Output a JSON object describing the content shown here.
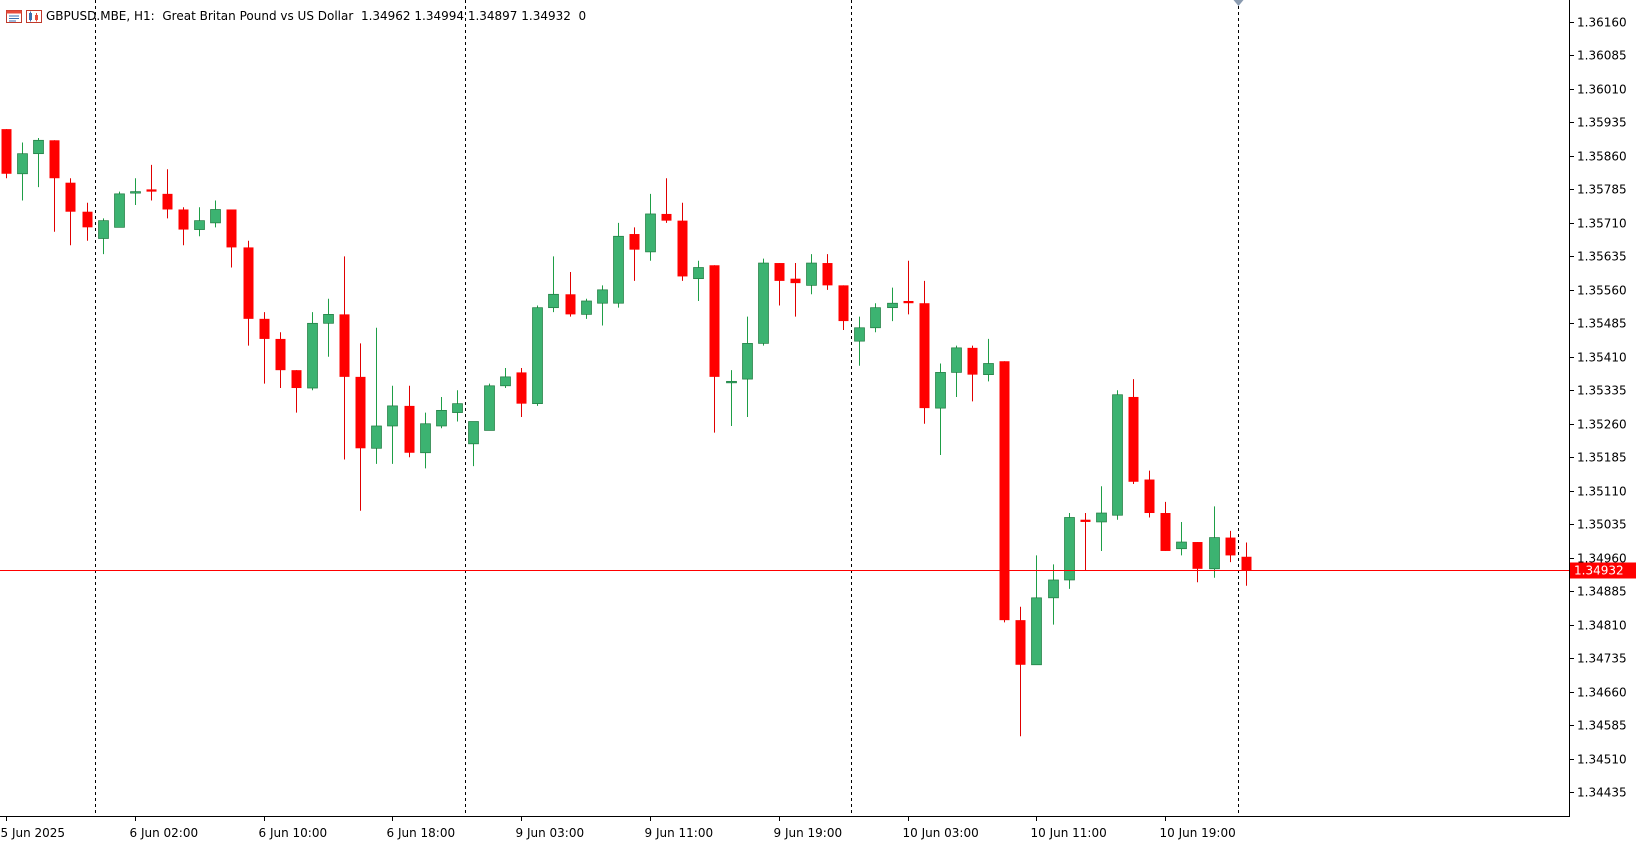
{
  "header": {
    "symbol": "GBPUSD.MBE, H1:",
    "description": "Great Britan Pound vs US Dollar",
    "ohlc": "1.34962 1.34994 1.34897 1.34932",
    "volume": "0",
    "icons": [
      "window-menu-icon",
      "chart-type-icon"
    ]
  },
  "colors": {
    "bull": "#3cb371",
    "bear": "#ff0000",
    "wick_bull": "#1e9e46",
    "wick_bear": "#e00000",
    "current_price_line": "#ff0000",
    "axis": "#000000",
    "separator": "#000000"
  },
  "chart_data": {
    "type": "candlestick",
    "symbol": "GBPUSD.MBE",
    "timeframe": "H1",
    "current_price": 1.34932,
    "current_price_label": "1.34932",
    "ylim": [
      1.3437,
      1.362
    ],
    "y_ticks": [
      "1.36160",
      "1.36085",
      "1.36010",
      "1.35935",
      "1.35860",
      "1.35785",
      "1.35710",
      "1.35635",
      "1.35560",
      "1.35485",
      "1.35410",
      "1.35335",
      "1.35260",
      "1.35185",
      "1.35110",
      "1.35035",
      "1.34960",
      "1.34885",
      "1.34810",
      "1.34735",
      "1.34660",
      "1.34585",
      "1.34510",
      "1.34435"
    ],
    "x_tick_labels": [
      {
        "label": "5 Jun 2025",
        "bar": 0
      },
      {
        "label": "6 Jun 02:00",
        "bar": 8
      },
      {
        "label": "6 Jun 10:00",
        "bar": 16
      },
      {
        "label": "6 Jun 18:00",
        "bar": 24
      },
      {
        "label": "9 Jun 03:00",
        "bar": 32
      },
      {
        "label": "9 Jun 11:00",
        "bar": 40
      },
      {
        "label": "9 Jun 19:00",
        "bar": 48
      },
      {
        "label": "10 Jun 03:00",
        "bar": 56
      },
      {
        "label": "10 Jun 11:00",
        "bar": 64
      },
      {
        "label": "10 Jun 19:00",
        "bar": 72
      }
    ],
    "day_separator_bars": [
      5.5,
      28.5,
      52.5,
      76.5
    ],
    "candles": [
      {
        "o": 1.3592,
        "h": 1.3592,
        "l": 1.3581,
        "c": 1.3582
      },
      {
        "o": 1.3582,
        "h": 1.3589,
        "l": 1.3576,
        "c": 1.35865
      },
      {
        "o": 1.35865,
        "h": 1.359,
        "l": 1.3579,
        "c": 1.35895
      },
      {
        "o": 1.35895,
        "h": 1.35895,
        "l": 1.3569,
        "c": 1.3581
      },
      {
        "o": 1.358,
        "h": 1.3581,
        "l": 1.3566,
        "c": 1.35735
      },
      {
        "o": 1.35735,
        "h": 1.35755,
        "l": 1.3567,
        "c": 1.357
      },
      {
        "o": 1.35675,
        "h": 1.3572,
        "l": 1.3564,
        "c": 1.35715
      },
      {
        "o": 1.357,
        "h": 1.3578,
        "l": 1.357,
        "c": 1.35775
      },
      {
        "o": 1.3578,
        "h": 1.3581,
        "l": 1.3575,
        "c": 1.3578
      },
      {
        "o": 1.35785,
        "h": 1.3584,
        "l": 1.3576,
        "c": 1.3578
      },
      {
        "o": 1.35775,
        "h": 1.3583,
        "l": 1.3572,
        "c": 1.3574
      },
      {
        "o": 1.3574,
        "h": 1.35745,
        "l": 1.3566,
        "c": 1.35695
      },
      {
        "o": 1.35695,
        "h": 1.35745,
        "l": 1.3568,
        "c": 1.35715
      },
      {
        "o": 1.3571,
        "h": 1.3576,
        "l": 1.357,
        "c": 1.3574
      },
      {
        "o": 1.3574,
        "h": 1.3574,
        "l": 1.3561,
        "c": 1.35655
      },
      {
        "o": 1.35655,
        "h": 1.3567,
        "l": 1.35435,
        "c": 1.35495
      },
      {
        "o": 1.35495,
        "h": 1.3551,
        "l": 1.3535,
        "c": 1.3545
      },
      {
        "o": 1.3545,
        "h": 1.35465,
        "l": 1.3534,
        "c": 1.3538
      },
      {
        "o": 1.3538,
        "h": 1.3538,
        "l": 1.35285,
        "c": 1.3534
      },
      {
        "o": 1.3534,
        "h": 1.3551,
        "l": 1.35335,
        "c": 1.35485
      },
      {
        "o": 1.35485,
        "h": 1.3554,
        "l": 1.3541,
        "c": 1.35505
      },
      {
        "o": 1.35505,
        "h": 1.35635,
        "l": 1.3518,
        "c": 1.35365
      },
      {
        "o": 1.35365,
        "h": 1.3544,
        "l": 1.35065,
        "c": 1.35205
      },
      {
        "o": 1.35205,
        "h": 1.35475,
        "l": 1.3517,
        "c": 1.35255
      },
      {
        "o": 1.35255,
        "h": 1.35345,
        "l": 1.3517,
        "c": 1.353
      },
      {
        "o": 1.353,
        "h": 1.35345,
        "l": 1.35185,
        "c": 1.35195
      },
      {
        "o": 1.35195,
        "h": 1.35285,
        "l": 1.3516,
        "c": 1.3526
      },
      {
        "o": 1.35255,
        "h": 1.3532,
        "l": 1.3525,
        "c": 1.3529
      },
      {
        "o": 1.35285,
        "h": 1.35335,
        "l": 1.35265,
        "c": 1.35305
      },
      {
        "o": 1.35215,
        "h": 1.35265,
        "l": 1.35165,
        "c": 1.35265
      },
      {
        "o": 1.35245,
        "h": 1.3535,
        "l": 1.35245,
        "c": 1.35345
      },
      {
        "o": 1.35345,
        "h": 1.35385,
        "l": 1.3534,
        "c": 1.35365
      },
      {
        "o": 1.35375,
        "h": 1.35385,
        "l": 1.35275,
        "c": 1.35305
      },
      {
        "o": 1.35305,
        "h": 1.35525,
        "l": 1.353,
        "c": 1.3552
      },
      {
        "o": 1.3552,
        "h": 1.35635,
        "l": 1.3551,
        "c": 1.3555
      },
      {
        "o": 1.3555,
        "h": 1.356,
        "l": 1.355,
        "c": 1.35505
      },
      {
        "o": 1.35505,
        "h": 1.3554,
        "l": 1.35495,
        "c": 1.35535
      },
      {
        "o": 1.3553,
        "h": 1.3557,
        "l": 1.3548,
        "c": 1.3556
      },
      {
        "o": 1.3553,
        "h": 1.3571,
        "l": 1.3552,
        "c": 1.3568
      },
      {
        "o": 1.35685,
        "h": 1.357,
        "l": 1.3558,
        "c": 1.3565
      },
      {
        "o": 1.35645,
        "h": 1.35775,
        "l": 1.35625,
        "c": 1.3573
      },
      {
        "o": 1.3573,
        "h": 1.3581,
        "l": 1.3571,
        "c": 1.35715
      },
      {
        "o": 1.35715,
        "h": 1.35755,
        "l": 1.3558,
        "c": 1.3559
      },
      {
        "o": 1.35585,
        "h": 1.35625,
        "l": 1.35535,
        "c": 1.3561
      },
      {
        "o": 1.35615,
        "h": 1.35615,
        "l": 1.3524,
        "c": 1.35365
      },
      {
        "o": 1.35355,
        "h": 1.3538,
        "l": 1.35255,
        "c": 1.35355
      },
      {
        "o": 1.3536,
        "h": 1.355,
        "l": 1.35275,
        "c": 1.3544
      },
      {
        "o": 1.3544,
        "h": 1.3563,
        "l": 1.35435,
        "c": 1.3562
      },
      {
        "o": 1.3562,
        "h": 1.3562,
        "l": 1.35525,
        "c": 1.3558
      },
      {
        "o": 1.35585,
        "h": 1.3562,
        "l": 1.355,
        "c": 1.35575
      },
      {
        "o": 1.3557,
        "h": 1.3564,
        "l": 1.3555,
        "c": 1.3562
      },
      {
        "o": 1.3562,
        "h": 1.3564,
        "l": 1.3556,
        "c": 1.3557
      },
      {
        "o": 1.3557,
        "h": 1.3557,
        "l": 1.3547,
        "c": 1.3549
      },
      {
        "o": 1.35445,
        "h": 1.355,
        "l": 1.3539,
        "c": 1.35475
      },
      {
        "o": 1.35475,
        "h": 1.3553,
        "l": 1.35465,
        "c": 1.3552
      },
      {
        "o": 1.3552,
        "h": 1.35565,
        "l": 1.3549,
        "c": 1.3553
      },
      {
        "o": 1.35535,
        "h": 1.35625,
        "l": 1.35505,
        "c": 1.3553
      },
      {
        "o": 1.3553,
        "h": 1.3558,
        "l": 1.3526,
        "c": 1.35295
      },
      {
        "o": 1.35295,
        "h": 1.35395,
        "l": 1.3519,
        "c": 1.35375
      },
      {
        "o": 1.35375,
        "h": 1.35435,
        "l": 1.3532,
        "c": 1.3543
      },
      {
        "o": 1.3543,
        "h": 1.35435,
        "l": 1.3531,
        "c": 1.3537
      },
      {
        "o": 1.3537,
        "h": 1.3545,
        "l": 1.35355,
        "c": 1.35395
      },
      {
        "o": 1.354,
        "h": 1.354,
        "l": 1.34815,
        "c": 1.3482
      },
      {
        "o": 1.3482,
        "h": 1.3485,
        "l": 1.3456,
        "c": 1.3472
      },
      {
        "o": 1.3472,
        "h": 1.34965,
        "l": 1.3472,
        "c": 1.3487
      },
      {
        "o": 1.3487,
        "h": 1.34945,
        "l": 1.3481,
        "c": 1.3491
      },
      {
        "o": 1.3491,
        "h": 1.3506,
        "l": 1.3489,
        "c": 1.3505
      },
      {
        "o": 1.35045,
        "h": 1.3506,
        "l": 1.3493,
        "c": 1.3504
      },
      {
        "o": 1.3504,
        "h": 1.3512,
        "l": 1.34975,
        "c": 1.3506
      },
      {
        "o": 1.35055,
        "h": 1.35335,
        "l": 1.35045,
        "c": 1.35325
      },
      {
        "o": 1.3532,
        "h": 1.3536,
        "l": 1.35125,
        "c": 1.3513
      },
      {
        "o": 1.35135,
        "h": 1.35155,
        "l": 1.3505,
        "c": 1.3506
      },
      {
        "o": 1.3506,
        "h": 1.35085,
        "l": 1.34975,
        "c": 1.34975
      },
      {
        "o": 1.3498,
        "h": 1.3504,
        "l": 1.34965,
        "c": 1.34995
      },
      {
        "o": 1.34995,
        "h": 1.34995,
        "l": 1.34905,
        "c": 1.34935
      },
      {
        "o": 1.34935,
        "h": 1.35075,
        "l": 1.34915,
        "c": 1.35005
      },
      {
        "o": 1.35005,
        "h": 1.3502,
        "l": 1.3495,
        "c": 1.34965
      },
      {
        "o": 1.34962,
        "h": 1.34994,
        "l": 1.34897,
        "c": 1.34932
      }
    ]
  }
}
